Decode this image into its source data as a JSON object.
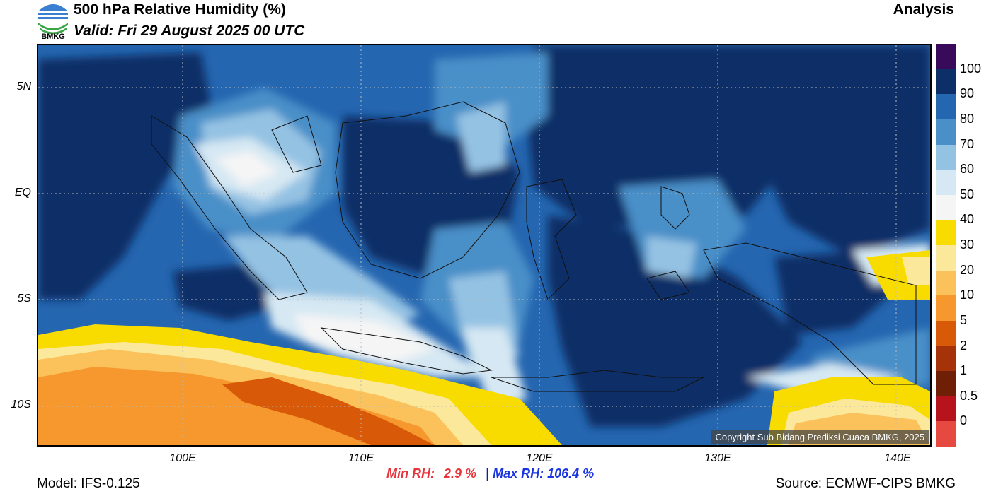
{
  "header": {
    "title": "500 hPa Relative Humidity (%)",
    "valid": "Valid: Fri 29 August 2025 00 UTC",
    "mode": "Analysis",
    "logo_text": "BMKG"
  },
  "axes": {
    "latitude_labels": [
      "5N",
      "EQ",
      "5S",
      "10S"
    ],
    "longitude_labels": [
      "100E",
      "110E",
      "120E",
      "130E",
      "140E"
    ]
  },
  "colorbar": {
    "labels": [
      "100",
      "90",
      "80",
      "70",
      "60",
      "50",
      "40",
      "30",
      "20",
      "10",
      "5",
      "2",
      "1",
      "0.5",
      "0"
    ],
    "colors": [
      "#3a0a5a",
      "#0b2f66",
      "#2566b0",
      "#4a8fc8",
      "#94c2e3",
      "#d6e8f3",
      "#f5f5f5",
      "#f8dc00",
      "#fce89a",
      "#fbc15a",
      "#f6982e",
      "#d85a08",
      "#a53208",
      "#6e1f05",
      "#b7131c",
      "#e5493f"
    ]
  },
  "stats": {
    "min_label": "Min RH:",
    "min_value": "2.9 %",
    "separator": "|",
    "max_label": "Max RH:",
    "max_value": "106.4 %"
  },
  "footer": {
    "model": "Model: IFS-0.125",
    "source": "Source: ECMWF-CIPS BMKG",
    "copyright": "Copyright Sub Bidang Prediksi Cuaca BMKG, 2025"
  }
}
